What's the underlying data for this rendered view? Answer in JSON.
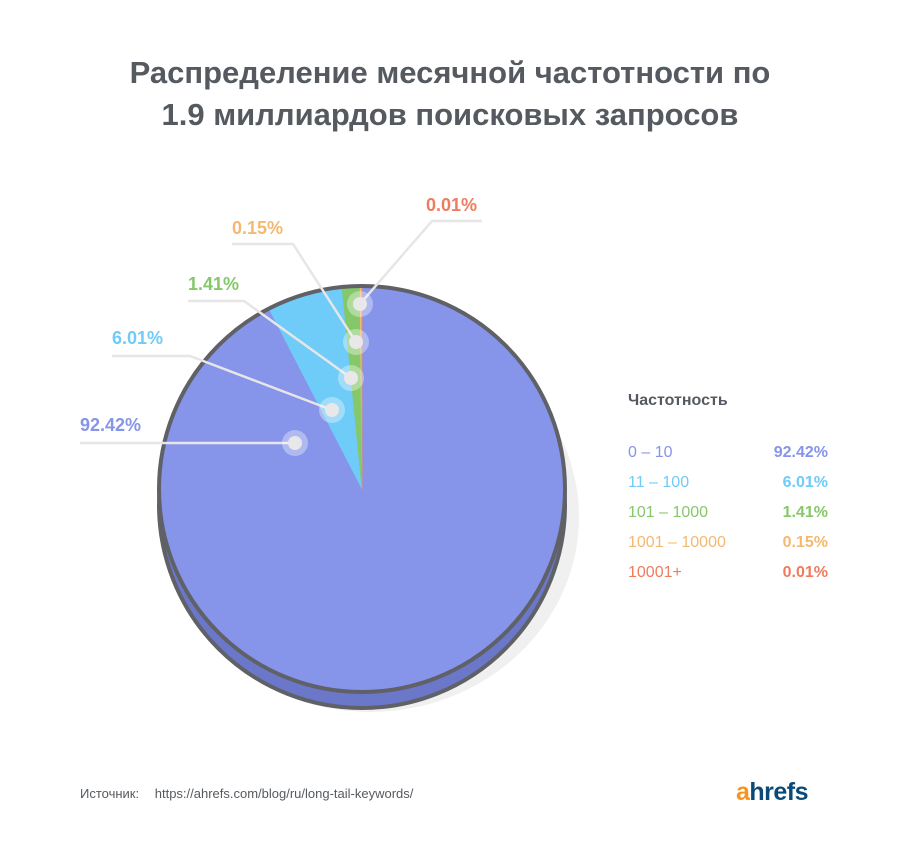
{
  "title": {
    "line1": "Распределение месячной частотности по",
    "line2": "1.9 миллиардов поисковых запросов"
  },
  "legend": {
    "title": "Частотность"
  },
  "chart_data": {
    "type": "pie",
    "title": "Распределение месячной частотности по 1.9 миллиардов поисковых запросов",
    "legend_title": "Частотность",
    "legend_position": "right",
    "slices": [
      {
        "category": "0 – 10",
        "value": 92.42,
        "label": "92.42%",
        "color": "#8694e9"
      },
      {
        "category": "11 – 100",
        "value": 6.01,
        "label": "6.01%",
        "color": "#6fcbf7"
      },
      {
        "category": "101 – 1000",
        "value": 1.41,
        "label": "1.41%",
        "color": "#85c86a"
      },
      {
        "category": "1001 – 10000",
        "value": 0.15,
        "label": "0.15%",
        "color": "#f4b971"
      },
      {
        "category": "10001+",
        "value": 0.01,
        "label": "0.01%",
        "color": "#ef7c5e"
      }
    ]
  },
  "source": {
    "label": "Источник:",
    "url": "https://ahrefs.com/blog/ru/long-tail-keywords/"
  },
  "logo": {
    "first": "a",
    "rest": "hrefs"
  },
  "colors": {
    "title": "#555a60",
    "outline": "#5f6166",
    "leader": "#e6e6e6",
    "logo_main": "#0a4a78",
    "logo_accent": "#f7931e"
  }
}
